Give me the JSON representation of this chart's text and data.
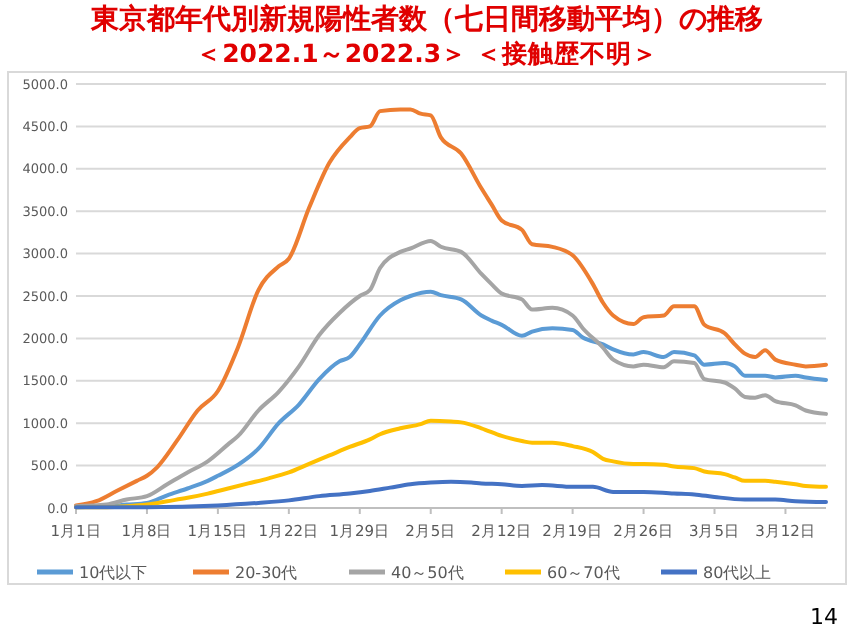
{
  "chart_data": {
    "type": "line",
    "title": "東京都年代別新規陽性者数（七日間移動平均）の推移",
    "subtitle": "＜2022.1～2022.3＞ ＜接触歴不明＞",
    "xlim": [
      "--01-01",
      "--03-16"
    ],
    "xticks": [
      {
        "value": "--01-01",
        "label": "1月1日"
      },
      {
        "value": "--01-08",
        "label": "1月8日"
      },
      {
        "value": "--01-15",
        "label": "1月15日"
      },
      {
        "value": "--01-22",
        "label": "1月22日"
      },
      {
        "value": "--01-29",
        "label": "1月29日"
      },
      {
        "value": "--02-05",
        "label": "2月5日"
      },
      {
        "value": "--02-12",
        "label": "2月12日"
      },
      {
        "value": "--02-19",
        "label": "2月19日"
      },
      {
        "value": "--02-26",
        "label": "2月26日"
      },
      {
        "value": "--03-05",
        "label": "3月5日"
      },
      {
        "value": "--03-12",
        "label": "3月12日"
      }
    ],
    "ylim": [
      0,
      5000
    ],
    "yticks": [
      {
        "value": 0,
        "label": "0.0"
      },
      {
        "value": 500,
        "label": "500.0"
      },
      {
        "value": 1000,
        "label": "1000.0"
      },
      {
        "value": 1500,
        "label": "1500.0"
      },
      {
        "value": 2000,
        "label": "2000.0"
      },
      {
        "value": 2500,
        "label": "2500.0"
      },
      {
        "value": 3000,
        "label": "3000.0"
      },
      {
        "value": 3500,
        "label": "3500.0"
      },
      {
        "value": 4000,
        "label": "4000.0"
      },
      {
        "value": 4500,
        "label": "4500.0"
      },
      {
        "value": 5000,
        "label": "5000.0"
      }
    ],
    "grid": "y",
    "legend": "bottom",
    "marker": "none",
    "line_style": "solid",
    "annotations": [
      "14"
    ],
    "series": [
      {
        "name": "10代以下",
        "color": "#5b9bd5",
        "x": [
          "--01-01",
          "--01-04",
          "--01-06",
          "--01-08",
          "--01-10",
          "--01-12",
          "--01-14",
          "--01-15",
          "--01-17",
          "--01-19",
          "--01-21",
          "--01-23",
          "--01-25",
          "--01-27",
          "--01-28",
          "--01-29",
          "--01-31",
          "--02-02",
          "--02-03",
          "--02-05",
          "--02-06",
          "--02-08",
          "--02-10",
          "--02-11",
          "--02-12",
          "--02-14",
          "--02-15",
          "--02-17",
          "--02-19",
          "--02-20",
          "--02-22",
          "--02-23",
          "--02-25",
          "--02-26",
          "--02-28",
          "--03-01",
          "--03-03",
          "--03-04",
          "--03-06",
          "--03-07",
          "--03-08",
          "--03-10",
          "--03-11",
          "--03-13",
          "--03-14",
          "--03-16"
        ],
        "values": [
          10,
          20,
          40,
          60,
          150,
          230,
          320,
          380,
          510,
          700,
          1000,
          1220,
          1520,
          1730,
          1780,
          1930,
          2270,
          2450,
          2500,
          2550,
          2510,
          2460,
          2270,
          2210,
          2160,
          2030,
          2080,
          2120,
          2100,
          2010,
          1930,
          1870,
          1810,
          1840,
          1780,
          1840,
          1800,
          1690,
          1710,
          1670,
          1560,
          1560,
          1540,
          1560,
          1540,
          1510
        ]
      },
      {
        "name": "20-30代",
        "color": "#ed7d31",
        "x": [
          "--01-01",
          "--01-03",
          "--01-05",
          "--01-07",
          "--01-08",
          "--01-09",
          "--01-11",
          "--01-13",
          "--01-15",
          "--01-17",
          "--01-19",
          "--01-21",
          "--01-22",
          "--01-24",
          "--01-26",
          "--01-28",
          "--01-29",
          "--01-30",
          "--01-31",
          "--02-02",
          "--02-03",
          "--02-04",
          "--02-05",
          "--02-06",
          "--02-08",
          "--02-10",
          "--02-11",
          "--02-12",
          "--02-14",
          "--02-15",
          "--02-17",
          "--02-19",
          "--02-21",
          "--02-22",
          "--02-23",
          "--02-25",
          "--02-26",
          "--02-28",
          "--03-01",
          "--03-03",
          "--03-04",
          "--03-06",
          "--03-07",
          "--03-08",
          "--03-09",
          "--03-10",
          "--03-11",
          "--03-13",
          "--03-14",
          "--03-16"
        ],
        "values": [
          30,
          80,
          200,
          320,
          380,
          480,
          800,
          1150,
          1380,
          1900,
          2570,
          2850,
          2940,
          3540,
          4070,
          4370,
          4480,
          4500,
          4680,
          4700,
          4700,
          4650,
          4630,
          4370,
          4180,
          3770,
          3580,
          3390,
          3280,
          3110,
          3080,
          2980,
          2640,
          2420,
          2270,
          2170,
          2250,
          2270,
          2380,
          2380,
          2160,
          2060,
          1930,
          1820,
          1780,
          1860,
          1750,
          1690,
          1670,
          1690
        ]
      },
      {
        "name": "40～50代",
        "color": "#a5a5a5",
        "x": [
          "--01-01",
          "--01-04",
          "--01-06",
          "--01-08",
          "--01-10",
          "--01-12",
          "--01-14",
          "--01-16",
          "--01-17",
          "--01-19",
          "--01-21",
          "--01-23",
          "--01-25",
          "--01-27",
          "--01-29",
          "--01-30",
          "--01-31",
          "--02-02",
          "--02-03",
          "--02-05",
          "--02-06",
          "--02-08",
          "--02-10",
          "--02-11",
          "--02-12",
          "--02-14",
          "--02-15",
          "--02-17",
          "--02-19",
          "--02-20",
          "--02-22",
          "--02-23",
          "--02-25",
          "--02-26",
          "--02-28",
          "--03-01",
          "--03-03",
          "--03-04",
          "--03-06",
          "--03-07",
          "--03-08",
          "--03-09",
          "--03-10",
          "--03-11",
          "--03-13",
          "--03-14",
          "--03-16"
        ],
        "values": [
          20,
          40,
          100,
          140,
          280,
          420,
          550,
          750,
          850,
          1150,
          1370,
          1670,
          2040,
          2300,
          2500,
          2570,
          2830,
          3020,
          3060,
          3150,
          3080,
          3020,
          2760,
          2640,
          2530,
          2460,
          2340,
          2360,
          2270,
          2120,
          1890,
          1750,
          1670,
          1690,
          1660,
          1730,
          1710,
          1520,
          1480,
          1410,
          1310,
          1300,
          1330,
          1260,
          1210,
          1150,
          1110
        ]
      },
      {
        "name": "60～70代",
        "color": "#ffc000",
        "x": [
          "--01-01",
          "--01-04",
          "--01-06",
          "--01-08",
          "--01-10",
          "--01-12",
          "--01-14",
          "--01-16",
          "--01-18",
          "--01-20",
          "--01-22",
          "--01-24",
          "--01-26",
          "--01-28",
          "--01-30",
          "--01-31",
          "--02-02",
          "--02-04",
          "--02-05",
          "--02-07",
          "--02-08",
          "--02-10",
          "--02-12",
          "--02-14",
          "--02-15",
          "--02-17",
          "--02-19",
          "--02-21",
          "--02-22",
          "--02-23",
          "--02-25",
          "--02-26",
          "--02-28",
          "--03-01",
          "--03-03",
          "--03-04",
          "--03-06",
          "--03-07",
          "--03-08",
          "--03-10",
          "--03-11",
          "--03-13",
          "--03-14",
          "--03-16"
        ],
        "values": [
          10,
          10,
          20,
          40,
          80,
          120,
          170,
          230,
          290,
          350,
          420,
          520,
          620,
          720,
          810,
          870,
          940,
          990,
          1030,
          1020,
          1010,
          940,
          850,
          790,
          770,
          770,
          730,
          660,
          580,
          550,
          520,
          520,
          510,
          490,
          470,
          430,
          400,
          360,
          320,
          320,
          310,
          280,
          260,
          250
        ]
      },
      {
        "name": "80代以上",
        "color": "#4472c4",
        "x": [
          "--01-01",
          "--01-08",
          "--01-15",
          "--01-19",
          "--01-22",
          "--01-25",
          "--01-28",
          "--01-30",
          "--02-01",
          "--02-03",
          "--02-05",
          "--02-07",
          "--02-09",
          "--02-10",
          "--02-12",
          "--02-14",
          "--02-16",
          "--02-19",
          "--02-21",
          "--02-23",
          "--02-25",
          "--02-26",
          "--03-01",
          "--03-03",
          "--03-05",
          "--03-08",
          "--03-11",
          "--03-13",
          "--03-16"
        ],
        "values": [
          10,
          10,
          30,
          60,
          90,
          140,
          170,
          200,
          240,
          280,
          300,
          310,
          300,
          290,
          280,
          260,
          270,
          250,
          250,
          190,
          190,
          190,
          170,
          160,
          130,
          100,
          100,
          80,
          70
        ]
      }
    ]
  }
}
